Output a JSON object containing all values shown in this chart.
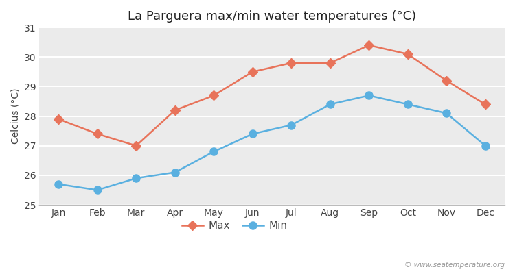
{
  "months": [
    "Jan",
    "Feb",
    "Mar",
    "Apr",
    "May",
    "Jun",
    "Jul",
    "Aug",
    "Sep",
    "Oct",
    "Nov",
    "Dec"
  ],
  "max_temps": [
    27.9,
    27.4,
    27.0,
    28.2,
    28.7,
    29.5,
    29.8,
    29.8,
    30.4,
    30.1,
    29.2,
    28.4
  ],
  "min_temps": [
    25.7,
    25.5,
    25.9,
    26.1,
    26.8,
    27.4,
    27.7,
    28.4,
    28.7,
    28.4,
    28.1,
    27.0
  ],
  "max_color": "#e8735a",
  "min_color": "#5ab0e0",
  "title": "La Parguera max/min water temperatures (°C)",
  "ylabel": "Celcius (°C)",
  "ylim": [
    25,
    31
  ],
  "yticks": [
    25,
    26,
    27,
    28,
    29,
    30,
    31
  ],
  "fig_bg_color": "#ffffff",
  "plot_bg_color": "#ebebeb",
  "grid_color": "#ffffff",
  "legend_labels": [
    "Max",
    "Min"
  ],
  "watermark": "© www.seatemperature.org",
  "title_fontsize": 13,
  "label_fontsize": 10,
  "tick_fontsize": 10,
  "marker_size_max": 7,
  "marker_size_min": 8
}
